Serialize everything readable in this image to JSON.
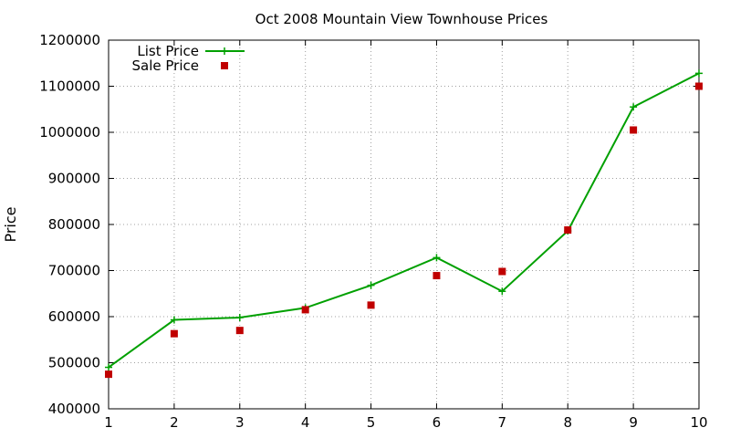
{
  "chart_data": {
    "type": "line",
    "title": "Oct 2008 Mountain View Townhouse Prices",
    "xlabel": "",
    "ylabel": "Price",
    "xlim": [
      1,
      10
    ],
    "ylim": [
      400000,
      1200000
    ],
    "x_ticks": [
      "1",
      "2",
      "3",
      "4",
      "5",
      "6",
      "7",
      "8",
      "9",
      "10"
    ],
    "y_ticks": [
      "400000",
      "500000",
      "600000",
      "700000",
      "800000",
      "900000",
      "1000000",
      "1100000",
      "1200000"
    ],
    "grid": true,
    "legend_position": "top-left",
    "x": [
      1,
      2,
      3,
      4,
      5,
      6,
      7,
      8,
      9,
      10
    ],
    "series": [
      {
        "name": "List Price",
        "style": "line+cross",
        "color": "#00a000",
        "values": [
          490000,
          593000,
          598000,
          619000,
          668000,
          728000,
          655000,
          786000,
          1055000,
          1128000
        ]
      },
      {
        "name": "Sale Price",
        "style": "square",
        "color": "#c00000",
        "values": [
          475000,
          563000,
          570000,
          615000,
          625000,
          689000,
          698000,
          788000,
          1005000,
          1100000
        ]
      }
    ]
  }
}
